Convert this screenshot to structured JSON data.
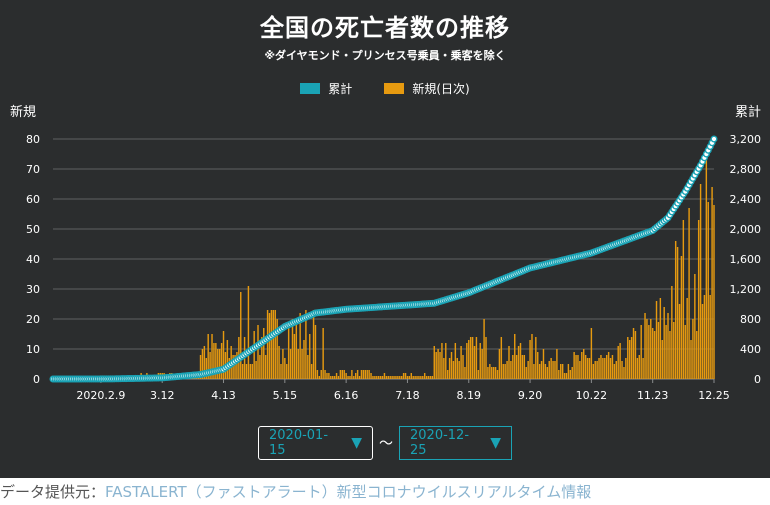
{
  "title": "全国の死亡者数の推移",
  "subtitle": "※ダイヤモンド・プリンセス号乗員・乗客を除く",
  "legend": [
    {
      "label": "累計",
      "color": "#1aa3b5"
    },
    {
      "label": "新規(日次)",
      "color": "#e69a10"
    }
  ],
  "date_range": {
    "from": "2020-01-15",
    "separator": "〜",
    "to": "2020-12-25",
    "caret": "▼"
  },
  "source": {
    "label": "データ提供元：",
    "link_text": "FASTALERT（ファストアラート）新型コロナウイルスリアルタイム情報"
  },
  "chart_data": {
    "type": "bar+line",
    "title": "全国の死亡者数の推移",
    "subtitle": "※ダイヤモンド・プリンセス号乗員・乗客を除く",
    "x_start": "2020-01-15",
    "x_end": "2020-12-25",
    "x_ticks": [
      "2020.2.9",
      "3.12",
      "4.13",
      "5.15",
      "6.16",
      "7.18",
      "8.19",
      "9.20",
      "10.22",
      "11.23",
      "12.25"
    ],
    "y_left": {
      "label": "新規",
      "range": [
        0,
        80
      ],
      "ticks": [
        "0",
        "10",
        "20",
        "30",
        "40",
        "50",
        "60",
        "70",
        "80"
      ]
    },
    "y_right": {
      "label": "累計",
      "range": [
        0,
        3200
      ],
      "ticks": [
        "0",
        "400",
        "800",
        "1,200",
        "1,600",
        "2,000",
        "2,400",
        "2,800",
        "3,200"
      ]
    },
    "grid": true,
    "legend_position": "top-center",
    "series": [
      {
        "name": "新規(日次)",
        "kind": "bar",
        "axis": "left",
        "color": "#e69a10",
        "approx_daily_level_by_month": {
          "Jan": 0,
          "Feb": 0.2,
          "Mar": 1.5,
          "Apr": 10,
          "May": 15,
          "Jun": 2,
          "Jul": 1,
          "Aug": 9,
          "Sep": 9,
          "Oct": 6,
          "Nov": 12,
          "Dec": 40
        },
        "peaks": {
          "2020-04-26": 31,
          "2020-04-22": 29,
          "2020-06-04": 17,
          "2020-08-27": 20,
          "2020-10-22": 17,
          "2020-12-09": 53,
          "2020-12-24": 64
        }
      },
      {
        "name": "累計",
        "kind": "line",
        "axis": "right",
        "color": "#1aa3b5",
        "anchors": [
          [
            "2020-01-15",
            0
          ],
          [
            "2020-02-13",
            1
          ],
          [
            "2020-03-12",
            15
          ],
          [
            "2020-04-01",
            60
          ],
          [
            "2020-04-13",
            130
          ],
          [
            "2020-05-01",
            450
          ],
          [
            "2020-05-15",
            700
          ],
          [
            "2020-05-31",
            880
          ],
          [
            "2020-06-16",
            930
          ],
          [
            "2020-07-18",
            985
          ],
          [
            "2020-08-01",
            1010
          ],
          [
            "2020-08-19",
            1150
          ],
          [
            "2020-09-20",
            1480
          ],
          [
            "2020-10-22",
            1680
          ],
          [
            "2020-11-23",
            1980
          ],
          [
            "2020-12-01",
            2150
          ],
          [
            "2020-12-10",
            2500
          ],
          [
            "2020-12-18",
            2850
          ],
          [
            "2020-12-25",
            3200
          ]
        ]
      }
    ]
  }
}
